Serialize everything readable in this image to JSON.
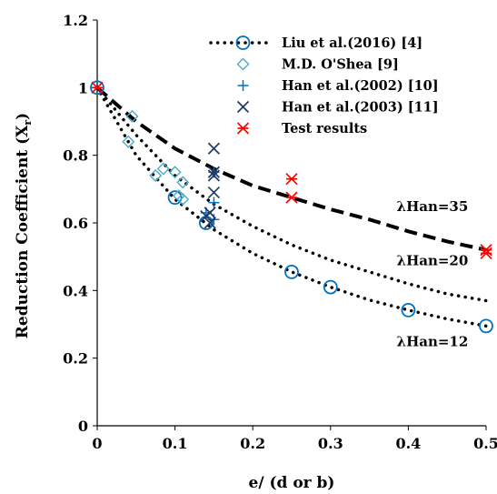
{
  "chart_data": {
    "type": "scatter",
    "xlabel": "e/ (d or b)",
    "ylabel": "Reduction Coefficient (X",
    "ylabel_sub": "r",
    "ylabel_close": ")",
    "xlim": [
      0,
      0.5
    ],
    "ylim": [
      0,
      1.2
    ],
    "x_ticks": [
      "0",
      "0.1",
      "0.2",
      "0.3",
      "0.4",
      "0.5"
    ],
    "y_ticks": [
      "0",
      "0.2",
      "0.4",
      "0.6",
      "0.8",
      "1",
      "1.2"
    ],
    "grid": false,
    "legend_placement": "top-right",
    "annotations": [
      {
        "text": "λHan=35",
        "x": 0.385,
        "y": 0.635
      },
      {
        "text": "λHan=20",
        "x": 0.385,
        "y": 0.475
      },
      {
        "text": "λHan=12",
        "x": 0.385,
        "y": 0.235
      }
    ],
    "series": [
      {
        "name": "Liu et al.(2016)    [4]",
        "kind": "curve-markers",
        "color": "#0070c0",
        "curve": [
          [
            0,
            1.0
          ],
          [
            0.05,
            0.8
          ],
          [
            0.1,
            0.67
          ],
          [
            0.15,
            0.58
          ],
          [
            0.2,
            0.51
          ],
          [
            0.25,
            0.455
          ],
          [
            0.3,
            0.41
          ],
          [
            0.35,
            0.372
          ],
          [
            0.4,
            0.342
          ],
          [
            0.45,
            0.316
          ],
          [
            0.5,
            0.295
          ]
        ],
        "points": [
          [
            0,
            1.0
          ],
          [
            0.1,
            0.675
          ],
          [
            0.14,
            0.6
          ],
          [
            0.25,
            0.455
          ],
          [
            0.3,
            0.41
          ],
          [
            0.4,
            0.342
          ],
          [
            0.5,
            0.295
          ]
        ]
      },
      {
        "name": "M.D. O'Shea          [9]",
        "kind": "markers",
        "color": "#4bacc6",
        "points": [
          [
            0.04,
            0.84
          ],
          [
            0.045,
            0.915
          ],
          [
            0.075,
            0.74
          ],
          [
            0.085,
            0.76
          ],
          [
            0.1,
            0.75
          ],
          [
            0.105,
            0.68
          ],
          [
            0.11,
            0.67
          ],
          [
            0.11,
            0.72
          ]
        ]
      },
      {
        "name": "Han et al.(2002) [10]",
        "kind": "markers",
        "color": "#0070c0",
        "points": [
          [
            0.14,
            0.63
          ],
          [
            0.15,
            0.61
          ],
          [
            0.15,
            0.75
          ],
          [
            0.15,
            0.66
          ]
        ]
      },
      {
        "name": "Han et al.(2003) [11]",
        "kind": "markers",
        "color": "#1f3864",
        "points": [
          [
            0.14,
            0.62
          ],
          [
            0.145,
            0.63
          ],
          [
            0.15,
            0.82
          ],
          [
            0.15,
            0.75
          ],
          [
            0.15,
            0.74
          ],
          [
            0.15,
            0.69
          ],
          [
            0.145,
            0.6
          ]
        ]
      },
      {
        "name": "Test results",
        "kind": "markers",
        "color": "#ff0000",
        "points": [
          [
            0,
            1.0
          ],
          [
            0.25,
            0.73
          ],
          [
            0.25,
            0.675
          ],
          [
            0.5,
            0.52
          ],
          [
            0.5,
            0.51
          ]
        ]
      },
      {
        "name": "λHan=20",
        "kind": "curve",
        "color": "#000000",
        "curve": [
          [
            0,
            1.0
          ],
          [
            0.05,
            0.86
          ],
          [
            0.1,
            0.74
          ],
          [
            0.15,
            0.655
          ],
          [
            0.2,
            0.59
          ],
          [
            0.25,
            0.535
          ],
          [
            0.3,
            0.49
          ],
          [
            0.35,
            0.455
          ],
          [
            0.4,
            0.42
          ],
          [
            0.45,
            0.39
          ],
          [
            0.5,
            0.37
          ]
        ]
      },
      {
        "name": "λHan=35",
        "kind": "curve-dashed",
        "color": "#000000",
        "curve": [
          [
            0,
            1.0
          ],
          [
            0.05,
            0.9
          ],
          [
            0.1,
            0.82
          ],
          [
            0.15,
            0.76
          ],
          [
            0.2,
            0.71
          ],
          [
            0.25,
            0.675
          ],
          [
            0.3,
            0.64
          ],
          [
            0.35,
            0.61
          ],
          [
            0.4,
            0.575
          ],
          [
            0.45,
            0.545
          ],
          [
            0.5,
            0.52
          ]
        ]
      }
    ],
    "legend": [
      {
        "label": "Liu et al.(2016)    [4]",
        "marker": "circle",
        "line": "dotted",
        "color": "#0070c0"
      },
      {
        "label": "M.D. O'Shea          [9]",
        "marker": "diamond",
        "color": "#4bacc6"
      },
      {
        "label": "Han et al.(2002) [10]",
        "marker": "plus",
        "color": "#0070c0"
      },
      {
        "label": "Han et al.(2003) [11]",
        "marker": "x",
        "color": "#1f3864"
      },
      {
        "label": "Test results",
        "marker": "star",
        "color": "#ff0000"
      }
    ]
  }
}
